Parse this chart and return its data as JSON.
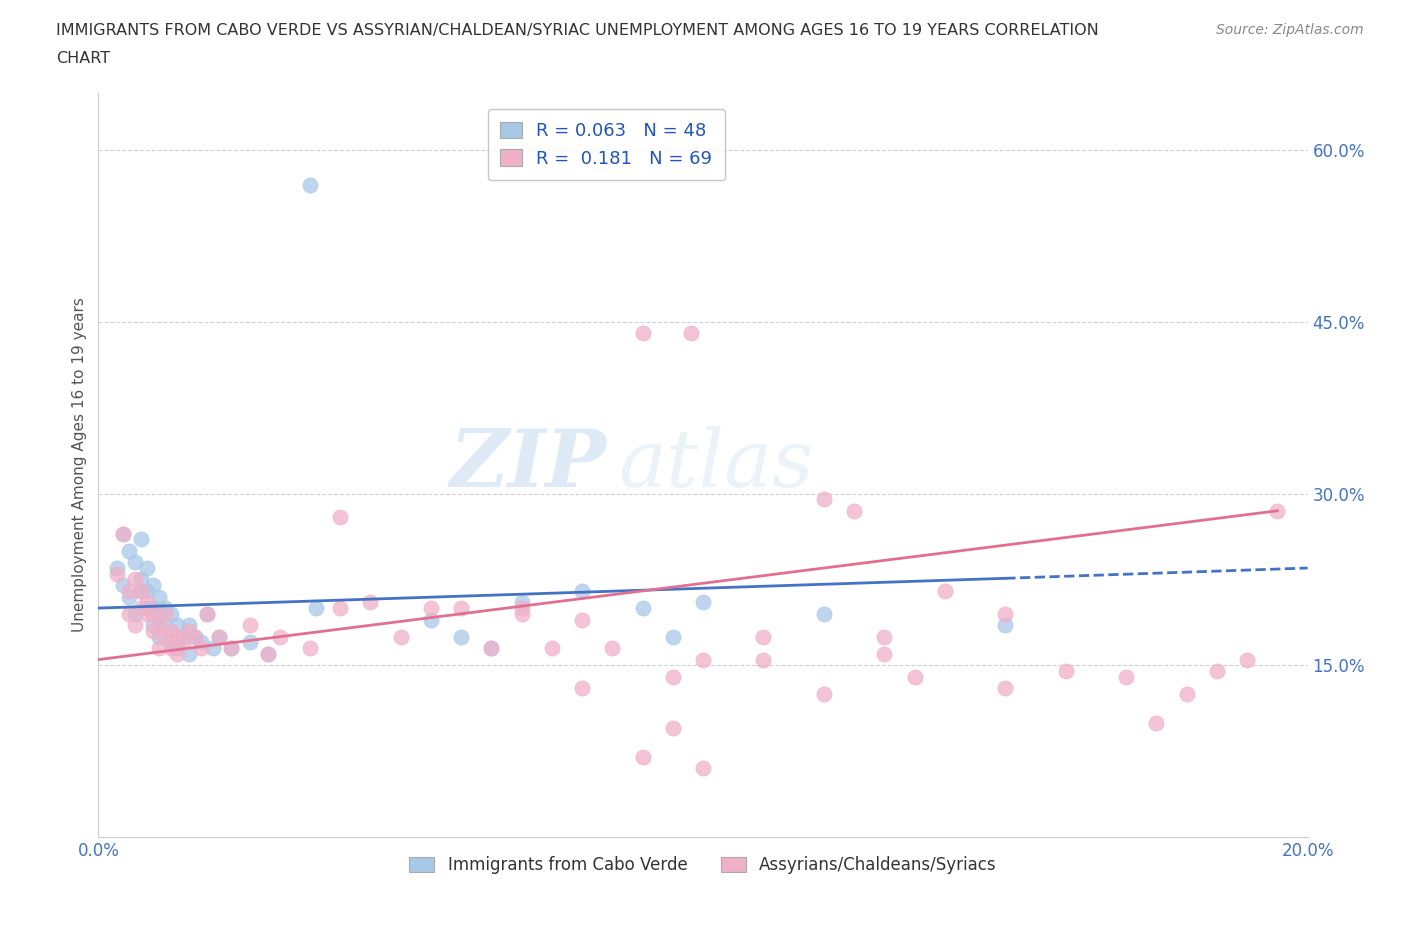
{
  "title_line1": "IMMIGRANTS FROM CABO VERDE VS ASSYRIAN/CHALDEAN/SYRIAC UNEMPLOYMENT AMONG AGES 16 TO 19 YEARS CORRELATION",
  "title_line2": "CHART",
  "source_text": "Source: ZipAtlas.com",
  "ylabel": "Unemployment Among Ages 16 to 19 years",
  "xlim": [
    0.0,
    0.2
  ],
  "ylim": [
    0.0,
    0.65
  ],
  "x_ticks": [
    0.0,
    0.05,
    0.1,
    0.15,
    0.2
  ],
  "x_tick_labels": [
    "0.0%",
    "",
    "",
    "",
    "20.0%"
  ],
  "y_ticks": [
    0.15,
    0.3,
    0.45,
    0.6
  ],
  "y_tick_labels_right": [
    "15.0%",
    "30.0%",
    "45.0%",
    "60.0%"
  ],
  "watermark_zip": "ZIP",
  "watermark_atlas": "atlas",
  "cabo_verde_color": "#a8c8e8",
  "assyrian_color": "#f0b0c8",
  "cabo_verde_R": 0.063,
  "cabo_verde_N": 48,
  "assyrian_R": 0.181,
  "assyrian_N": 69,
  "grid_color": "#cccccc",
  "background_color": "#ffffff",
  "line_blue_color": "#4472c4",
  "line_pink_color": "#e07090",
  "title_color": "#333333",
  "legend_r_color": "#2255bb",
  "cabo_verde_scatter_x": [
    0.003,
    0.004,
    0.004,
    0.005,
    0.005,
    0.006,
    0.006,
    0.007,
    0.007,
    0.007,
    0.008,
    0.008,
    0.008,
    0.009,
    0.009,
    0.009,
    0.01,
    0.01,
    0.01,
    0.011,
    0.011,
    0.012,
    0.012,
    0.013,
    0.013,
    0.014,
    0.015,
    0.015,
    0.016,
    0.017,
    0.018,
    0.019,
    0.02,
    0.022,
    0.025,
    0.028,
    0.035,
    0.036,
    0.055,
    0.06,
    0.065,
    0.07,
    0.08,
    0.09,
    0.095,
    0.1,
    0.12,
    0.15
  ],
  "cabo_verde_scatter_y": [
    0.235,
    0.265,
    0.22,
    0.25,
    0.21,
    0.24,
    0.195,
    0.26,
    0.215,
    0.225,
    0.235,
    0.2,
    0.215,
    0.22,
    0.185,
    0.2,
    0.21,
    0.195,
    0.175,
    0.2,
    0.185,
    0.195,
    0.17,
    0.185,
    0.165,
    0.175,
    0.185,
    0.16,
    0.175,
    0.17,
    0.195,
    0.165,
    0.175,
    0.165,
    0.17,
    0.16,
    0.57,
    0.2,
    0.19,
    0.175,
    0.165,
    0.205,
    0.215,
    0.2,
    0.175,
    0.205,
    0.195,
    0.185
  ],
  "assyrian_scatter_x": [
    0.003,
    0.004,
    0.005,
    0.005,
    0.006,
    0.006,
    0.007,
    0.007,
    0.008,
    0.008,
    0.009,
    0.009,
    0.01,
    0.01,
    0.011,
    0.011,
    0.012,
    0.012,
    0.013,
    0.013,
    0.014,
    0.015,
    0.016,
    0.017,
    0.018,
    0.02,
    0.022,
    0.025,
    0.028,
    0.03,
    0.035,
    0.04,
    0.04,
    0.045,
    0.05,
    0.055,
    0.06,
    0.065,
    0.07,
    0.075,
    0.08,
    0.085,
    0.09,
    0.095,
    0.1,
    0.11,
    0.12,
    0.125,
    0.13,
    0.135,
    0.14,
    0.15,
    0.16,
    0.17,
    0.175,
    0.18,
    0.185,
    0.19,
    0.195,
    0.098,
    0.11,
    0.12,
    0.13,
    0.15,
    0.07,
    0.08,
    0.09,
    0.095,
    0.1
  ],
  "assyrian_scatter_y": [
    0.23,
    0.265,
    0.195,
    0.215,
    0.225,
    0.185,
    0.2,
    0.215,
    0.195,
    0.205,
    0.18,
    0.195,
    0.165,
    0.185,
    0.175,
    0.195,
    0.165,
    0.18,
    0.16,
    0.175,
    0.17,
    0.18,
    0.175,
    0.165,
    0.195,
    0.175,
    0.165,
    0.185,
    0.16,
    0.175,
    0.165,
    0.28,
    0.2,
    0.205,
    0.175,
    0.2,
    0.2,
    0.165,
    0.195,
    0.165,
    0.19,
    0.165,
    0.44,
    0.14,
    0.155,
    0.175,
    0.295,
    0.285,
    0.175,
    0.14,
    0.215,
    0.195,
    0.145,
    0.14,
    0.1,
    0.125,
    0.145,
    0.155,
    0.285,
    0.44,
    0.155,
    0.125,
    0.16,
    0.13,
    0.2,
    0.13,
    0.07,
    0.095,
    0.06
  ],
  "cabo_verde_line_x": [
    0.0,
    0.15
  ],
  "cabo_verde_line_y": [
    0.2,
    0.23
  ],
  "assyrian_line_x": [
    0.0,
    0.195
  ],
  "assyrian_line_y": [
    0.155,
    0.285
  ],
  "legend_items": [
    {
      "label": "R = 0.063   N = 48",
      "color": "#a8c8e8"
    },
    {
      "label": "R =  0.181   N = 69",
      "color": "#f0b0c8"
    }
  ],
  "bottom_legend": [
    {
      "label": "Immigrants from Cabo Verde",
      "color": "#a8c8e8"
    },
    {
      "label": "Assyrians/Chaldeans/Syriacs",
      "color": "#f0b0c8"
    }
  ]
}
